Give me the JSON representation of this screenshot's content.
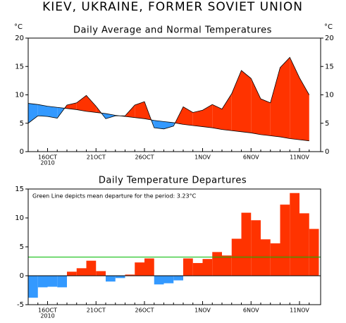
{
  "chart_data": [
    {
      "type": "area_difference",
      "title": "KIEV, UKRAINE, FORMER SOVIET UNION",
      "subtitle": "Daily Average and Normal Temperatures",
      "y_label": "°C",
      "y2_label": "°C",
      "categories": [
        null,
        null,
        "16OCT",
        null,
        null,
        null,
        null,
        "21OCT",
        null,
        null,
        null,
        null,
        "26OCT",
        null,
        null,
        null,
        null,
        null,
        "1NOV",
        null,
        null,
        null,
        null,
        "6NOV",
        null,
        null,
        null,
        null,
        "11NOV",
        null
      ],
      "year_label": "2010",
      "series": [
        {
          "name": "Average",
          "color": "#000000",
          "values": [
            5.0,
            6.3,
            6.2,
            5.9,
            8.2,
            8.6,
            9.9,
            8.0,
            5.8,
            6.3,
            6.3,
            8.2,
            8.8,
            4.2,
            4.0,
            4.5,
            7.9,
            6.9,
            7.3,
            8.3,
            7.5,
            10.2,
            14.3,
            12.9,
            9.3,
            8.6,
            14.8,
            16.6,
            13.0,
            10.0
          ]
        },
        {
          "name": "Normal",
          "color": "#000000",
          "values": [
            8.5,
            8.3,
            8.0,
            7.8,
            7.6,
            7.4,
            7.1,
            6.9,
            6.7,
            6.4,
            6.2,
            6.0,
            5.8,
            5.5,
            5.3,
            5.1,
            4.8,
            4.6,
            4.4,
            4.2,
            3.9,
            3.7,
            3.5,
            3.3,
            3.0,
            2.8,
            2.6,
            2.3,
            2.1,
            1.9
          ]
        }
      ],
      "above_color": "#ff3300",
      "below_color": "#3399ff",
      "ylim": [
        0,
        20
      ],
      "yticks": [
        0,
        5,
        10,
        15,
        20
      ],
      "y2lim": [
        0,
        20
      ],
      "y2ticks": [
        0,
        5,
        10,
        15,
        20
      ]
    },
    {
      "type": "bar",
      "subtitle": "Daily Temperature Departures",
      "annotation": "Green Line depicts mean departure for the period: 3.23°C",
      "mean_departure": 3.23,
      "mean_color": "#00bb00",
      "categories": [
        null,
        null,
        "16OCT",
        null,
        null,
        null,
        null,
        "21OCT",
        null,
        null,
        null,
        null,
        "26OCT",
        null,
        null,
        null,
        null,
        null,
        "1NOV",
        null,
        null,
        null,
        null,
        "6NOV",
        null,
        null,
        null,
        null,
        "11NOV",
        null
      ],
      "year_label": "2010",
      "values": [
        -3.8,
        -2.0,
        -1.9,
        -2.0,
        0.7,
        1.3,
        2.6,
        0.8,
        -1.0,
        -0.4,
        0.2,
        2.3,
        3.0,
        -1.5,
        -1.3,
        -0.8,
        3.0,
        2.2,
        2.9,
        4.1,
        3.5,
        6.4,
        10.9,
        9.6,
        6.3,
        5.6,
        12.3,
        14.3,
        10.8,
        8.1
      ],
      "positive_color": "#ff3300",
      "negative_color": "#3399ff",
      "ylim": [
        -5,
        15
      ],
      "yticks": [
        -5,
        0,
        5,
        10,
        15
      ]
    }
  ]
}
